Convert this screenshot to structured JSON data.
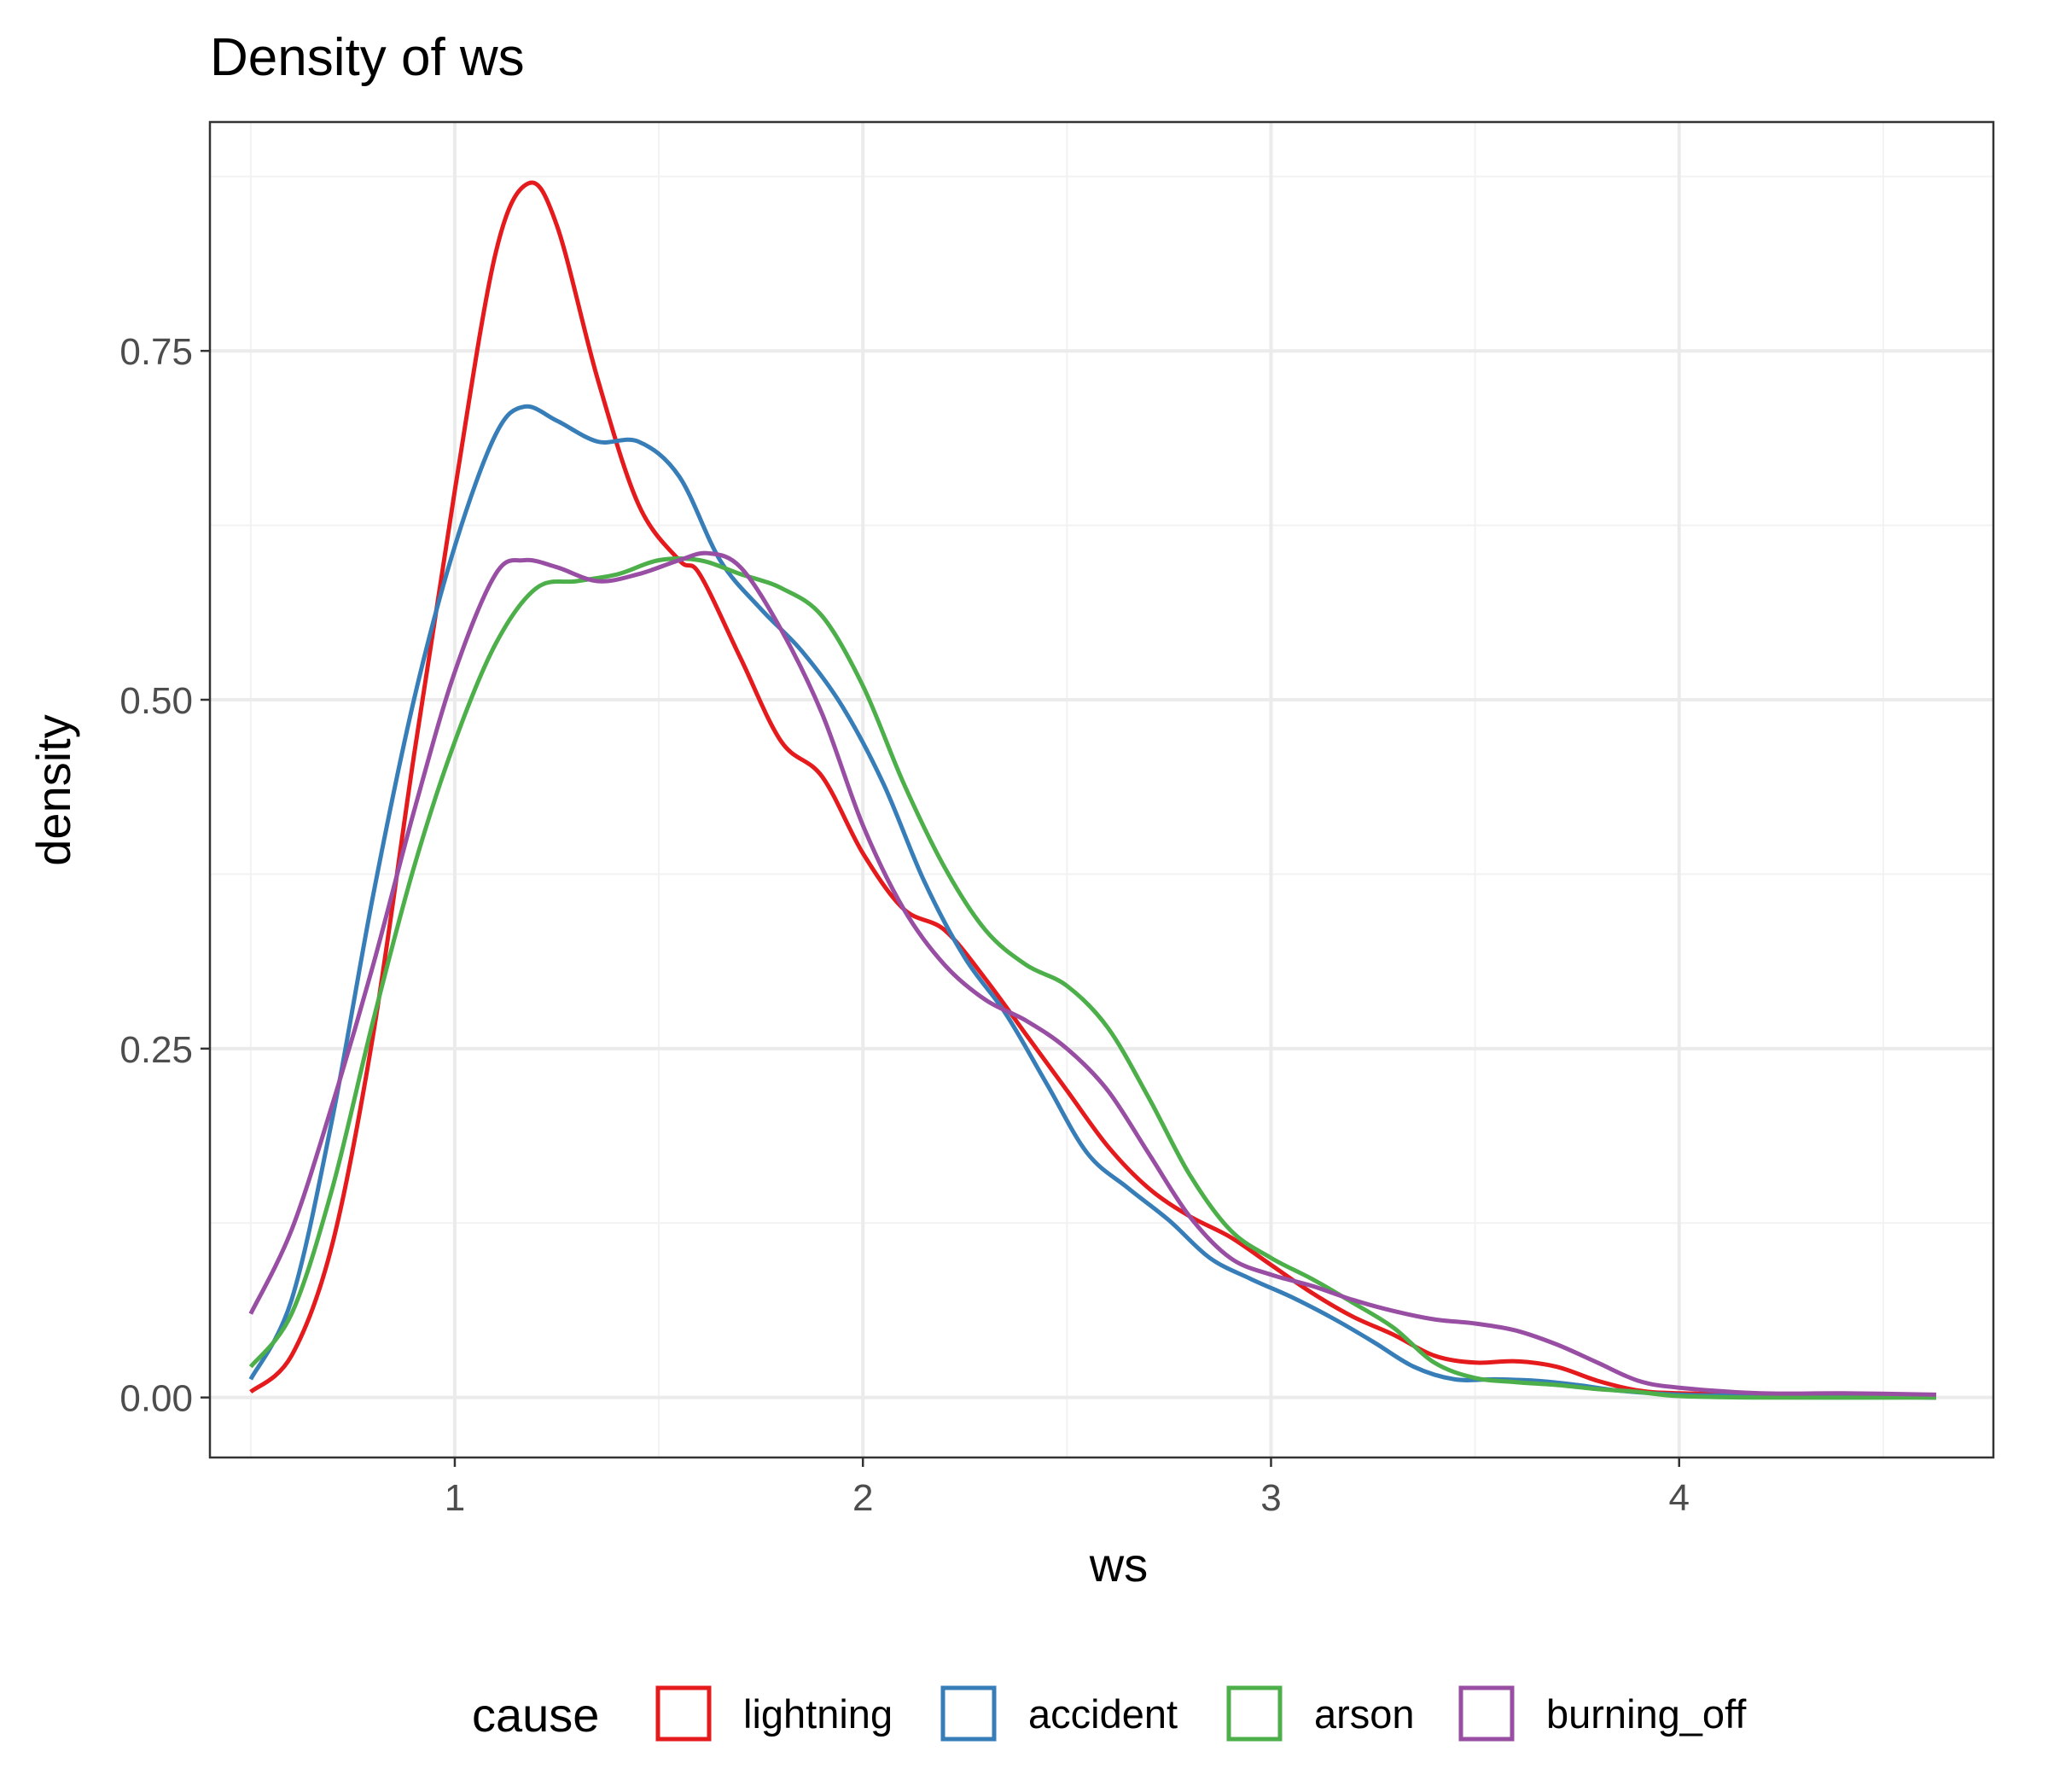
{
  "chart_data": {
    "type": "line",
    "title": "Density of ws",
    "xlabel": "ws",
    "ylabel": "density",
    "xlim": [
      0.4,
      4.77
    ],
    "ylim": [
      -0.043,
      0.914
    ],
    "xticks": [
      1,
      2,
      3,
      4
    ],
    "xtick_labels": [
      "1",
      "2",
      "3",
      "4"
    ],
    "yticks": [
      0,
      0.25,
      0.5,
      0.75
    ],
    "ytick_labels": [
      "0.00",
      "0.25",
      "0.50",
      "0.75"
    ],
    "grid": true,
    "legend": {
      "title": "cause",
      "position": "bottom"
    },
    "series": [
      {
        "name": "lightning",
        "color": "#E41A1C",
        "points": [
          [
            0.5,
            0.004
          ],
          [
            0.6,
            0.03
          ],
          [
            0.7,
            0.11
          ],
          [
            0.8,
            0.26
          ],
          [
            0.9,
            0.46
          ],
          [
            1.0,
            0.65
          ],
          [
            1.1,
            0.82
          ],
          [
            1.18,
            0.87
          ],
          [
            1.25,
            0.84
          ],
          [
            1.35,
            0.73
          ],
          [
            1.45,
            0.64
          ],
          [
            1.55,
            0.6
          ],
          [
            1.6,
            0.59
          ],
          [
            1.7,
            0.53
          ],
          [
            1.8,
            0.47
          ],
          [
            1.9,
            0.445
          ],
          [
            2.0,
            0.39
          ],
          [
            2.1,
            0.35
          ],
          [
            2.2,
            0.335
          ],
          [
            2.3,
            0.3
          ],
          [
            2.4,
            0.26
          ],
          [
            2.5,
            0.22
          ],
          [
            2.6,
            0.18
          ],
          [
            2.7,
            0.15
          ],
          [
            2.8,
            0.13
          ],
          [
            2.9,
            0.115
          ],
          [
            3.0,
            0.095
          ],
          [
            3.1,
            0.075
          ],
          [
            3.2,
            0.058
          ],
          [
            3.3,
            0.045
          ],
          [
            3.4,
            0.03
          ],
          [
            3.5,
            0.025
          ],
          [
            3.6,
            0.026
          ],
          [
            3.7,
            0.022
          ],
          [
            3.8,
            0.012
          ],
          [
            3.9,
            0.005
          ],
          [
            4.0,
            0.003
          ],
          [
            4.2,
            0.002
          ],
          [
            4.4,
            0.001
          ],
          [
            4.63,
            0.0
          ]
        ]
      },
      {
        "name": "accident",
        "color": "#377EB8",
        "points": [
          [
            0.5,
            0.013
          ],
          [
            0.6,
            0.07
          ],
          [
            0.7,
            0.2
          ],
          [
            0.8,
            0.36
          ],
          [
            0.9,
            0.5
          ],
          [
            1.0,
            0.61
          ],
          [
            1.1,
            0.69
          ],
          [
            1.17,
            0.71
          ],
          [
            1.25,
            0.7
          ],
          [
            1.35,
            0.685
          ],
          [
            1.45,
            0.685
          ],
          [
            1.55,
            0.66
          ],
          [
            1.65,
            0.6
          ],
          [
            1.75,
            0.565
          ],
          [
            1.85,
            0.535
          ],
          [
            1.95,
            0.495
          ],
          [
            2.05,
            0.44
          ],
          [
            2.15,
            0.37
          ],
          [
            2.25,
            0.315
          ],
          [
            2.35,
            0.275
          ],
          [
            2.45,
            0.225
          ],
          [
            2.55,
            0.175
          ],
          [
            2.65,
            0.15
          ],
          [
            2.75,
            0.127
          ],
          [
            2.85,
            0.1
          ],
          [
            2.95,
            0.085
          ],
          [
            3.05,
            0.072
          ],
          [
            3.15,
            0.057
          ],
          [
            3.25,
            0.04
          ],
          [
            3.35,
            0.022
          ],
          [
            3.45,
            0.013
          ],
          [
            3.55,
            0.013
          ],
          [
            3.65,
            0.012
          ],
          [
            3.75,
            0.009
          ],
          [
            3.85,
            0.005
          ],
          [
            4.0,
            0.002
          ],
          [
            4.2,
            0.001
          ],
          [
            4.63,
            0.0
          ]
        ]
      },
      {
        "name": "arson",
        "color": "#4DAF4A",
        "points": [
          [
            0.5,
            0.022
          ],
          [
            0.6,
            0.06
          ],
          [
            0.7,
            0.15
          ],
          [
            0.8,
            0.27
          ],
          [
            0.9,
            0.38
          ],
          [
            1.0,
            0.47
          ],
          [
            1.1,
            0.54
          ],
          [
            1.2,
            0.58
          ],
          [
            1.3,
            0.585
          ],
          [
            1.4,
            0.59
          ],
          [
            1.5,
            0.6
          ],
          [
            1.6,
            0.6
          ],
          [
            1.7,
            0.59
          ],
          [
            1.8,
            0.58
          ],
          [
            1.9,
            0.56
          ],
          [
            2.0,
            0.51
          ],
          [
            2.1,
            0.44
          ],
          [
            2.2,
            0.38
          ],
          [
            2.3,
            0.335
          ],
          [
            2.4,
            0.31
          ],
          [
            2.5,
            0.295
          ],
          [
            2.6,
            0.265
          ],
          [
            2.7,
            0.215
          ],
          [
            2.8,
            0.16
          ],
          [
            2.9,
            0.12
          ],
          [
            3.0,
            0.1
          ],
          [
            3.1,
            0.085
          ],
          [
            3.2,
            0.068
          ],
          [
            3.3,
            0.05
          ],
          [
            3.4,
            0.025
          ],
          [
            3.5,
            0.014
          ],
          [
            3.6,
            0.011
          ],
          [
            3.7,
            0.009
          ],
          [
            3.8,
            0.006
          ],
          [
            3.9,
            0.004
          ],
          [
            4.0,
            0.001
          ],
          [
            4.2,
            0.0
          ],
          [
            4.63,
            0.0
          ]
        ]
      },
      {
        "name": "burning_off",
        "color": "#984EA3",
        "points": [
          [
            0.5,
            0.06
          ],
          [
            0.6,
            0.12
          ],
          [
            0.7,
            0.21
          ],
          [
            0.8,
            0.31
          ],
          [
            0.9,
            0.42
          ],
          [
            1.0,
            0.52
          ],
          [
            1.1,
            0.59
          ],
          [
            1.17,
            0.6
          ],
          [
            1.25,
            0.595
          ],
          [
            1.35,
            0.585
          ],
          [
            1.45,
            0.59
          ],
          [
            1.55,
            0.6
          ],
          [
            1.62,
            0.605
          ],
          [
            1.7,
            0.595
          ],
          [
            1.8,
            0.55
          ],
          [
            1.9,
            0.49
          ],
          [
            2.0,
            0.41
          ],
          [
            2.1,
            0.35
          ],
          [
            2.2,
            0.31
          ],
          [
            2.3,
            0.285
          ],
          [
            2.4,
            0.27
          ],
          [
            2.5,
            0.25
          ],
          [
            2.6,
            0.22
          ],
          [
            2.7,
            0.175
          ],
          [
            2.8,
            0.13
          ],
          [
            2.9,
            0.1
          ],
          [
            3.0,
            0.088
          ],
          [
            3.1,
            0.08
          ],
          [
            3.2,
            0.07
          ],
          [
            3.3,
            0.062
          ],
          [
            3.4,
            0.056
          ],
          [
            3.5,
            0.053
          ],
          [
            3.6,
            0.048
          ],
          [
            3.7,
            0.038
          ],
          [
            3.8,
            0.025
          ],
          [
            3.9,
            0.012
          ],
          [
            4.0,
            0.007
          ],
          [
            4.2,
            0.003
          ],
          [
            4.4,
            0.003
          ],
          [
            4.63,
            0.002
          ]
        ]
      }
    ]
  }
}
